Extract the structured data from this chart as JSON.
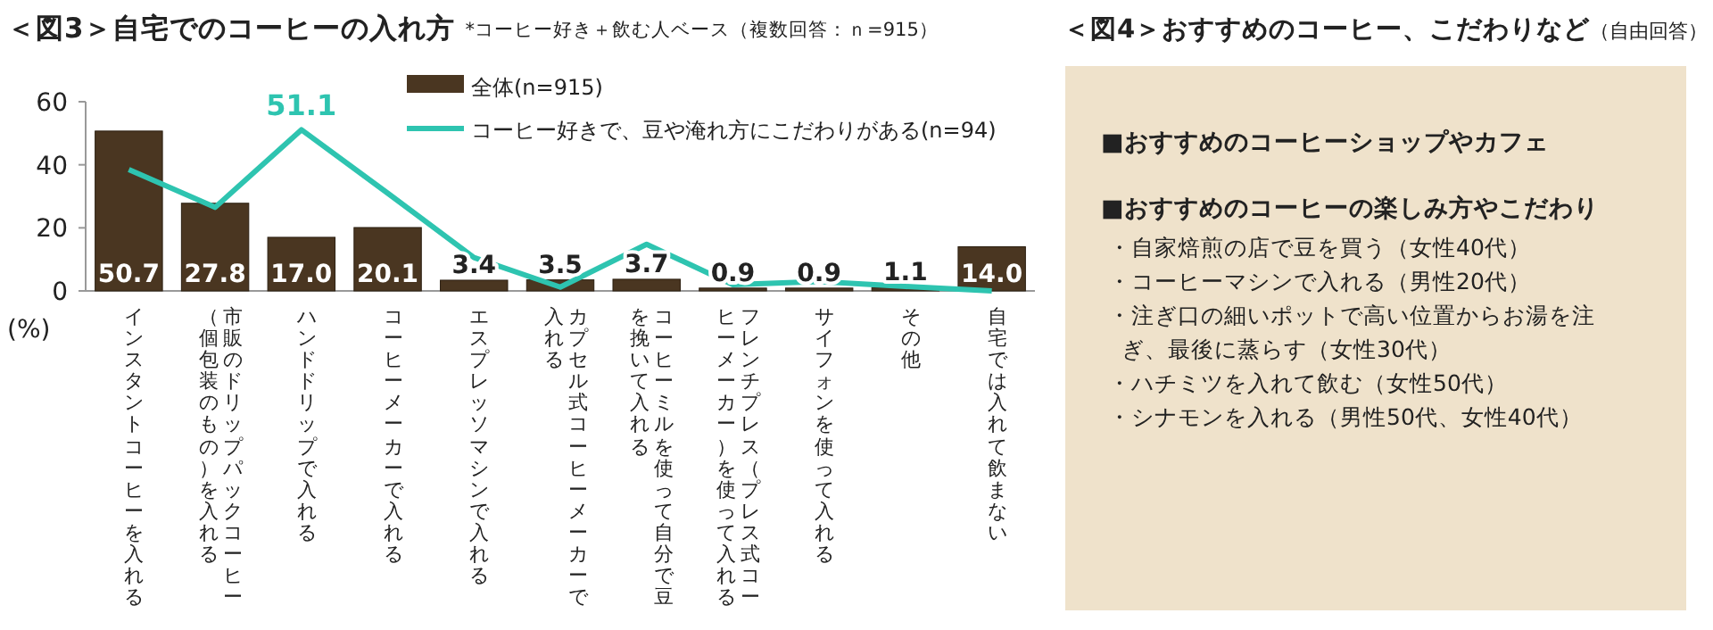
{
  "chart_data": [
    {
      "type": "bar",
      "title": "＜図3＞自宅でのコーヒーの入れ方",
      "subtitle": "*コーヒー好き＋飲む人ベース（複数回答：ｎ=915）",
      "ylabel": "(%)",
      "categories": [
        "インスタントコーヒーを入れる",
        "市販のドリップパックコーヒー（個包装のもの）を入れる",
        "ハンドドリップで入れる",
        "コーヒーメーカーで入れる",
        "エスプレッソマシンで入れる",
        "カプセル式コーヒーメーカーで入れる",
        "コーヒーミルを使って自分で豆を挽いて入れる",
        "フレンチプレス（プレス式コーヒーメーカー）を使って入れる",
        "サイフォンを使って入れる",
        "その他",
        "自宅では入れて飲まない"
      ],
      "ylim": [
        0,
        60
      ],
      "yticks": [
        0,
        20,
        40,
        60
      ],
      "legend": "top",
      "grid": false,
      "series": [
        {
          "name": "全体(n=915)",
          "type": "bar",
          "color": "#4a3621",
          "values": [
            50.7,
            27.8,
            17.0,
            20.1,
            3.4,
            3.5,
            3.7,
            0.9,
            0.9,
            1.1,
            14.0
          ],
          "value_labels": [
            "50.7",
            "27.8",
            "17.0",
            "20.1",
            "3.4",
            "3.5",
            "3.7",
            "0.9",
            "0.9",
            "1.1",
            "14.0"
          ]
        },
        {
          "name": "コーヒー好きで、豆や淹れ方にこだわりがある(n=94)",
          "type": "line",
          "color": "#2ec4b0",
          "values": [
            38.5,
            26.5,
            51.1,
            31,
            10.6,
            1.2,
            14.8,
            2,
            3,
            1.4,
            0
          ],
          "value_labels": [
            null,
            null,
            "51.1",
            null,
            null,
            null,
            null,
            null,
            null,
            null,
            null
          ]
        }
      ]
    },
    {
      "type": "other",
      "title": "＜図4＞おすすめのコーヒー、こだわりなど",
      "subtitle": "（自由回答）",
      "annotations": [
        "■おすすめのコーヒーショップやカフェ",
        "■おすすめのコーヒーの楽しみ方やこだわり",
        "・自家焙煎の店で豆を買う（女性40代）",
        "・コーヒーマシンで入れる（男性20代）",
        "・注ぎ口の細いポットで高い位置からお湯を注ぎ、最後に蒸らす（女性30代）",
        "・ハチミツを入れて飲む（女性50代）",
        "・シナモンを入れる（男性50代、女性40代）"
      ]
    }
  ]
}
